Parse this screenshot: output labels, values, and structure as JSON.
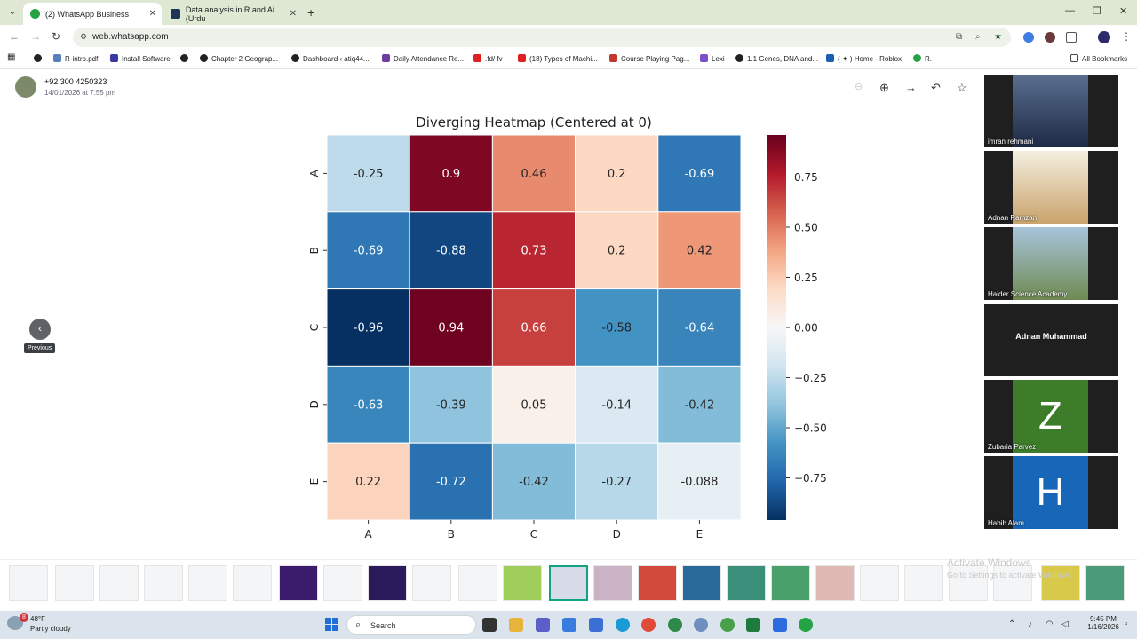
{
  "browser": {
    "tabs": [
      {
        "label": "(2) WhatsApp Business",
        "active": true
      },
      {
        "label": "Data analysis in R and Ai (Urdu",
        "active": false
      }
    ],
    "url": "web.whatsapp.com",
    "bookmarks": [
      "R-intro.pdf",
      "Install Software",
      "Chapter 2 Geograp...",
      "Dashboard ‹ atiq44...",
      "Daily Attendance Re...",
      ".fd/ fv",
      "(18) Types of Machi...",
      "Course Playing Pag...",
      "Lexi",
      "1.1 Genes, DNA and...",
      "( ✦ ) Home - Roblox",
      "R.",
      "All Bookmarks"
    ]
  },
  "viewer": {
    "sender": "+92 300 4250323",
    "timestamp": "14/01/2026 at 7:55 pm",
    "tooltip": "Previous"
  },
  "chart_data": {
    "type": "heatmap",
    "title": "Diverging Heatmap (Centered at 0)",
    "rows": [
      "A",
      "B",
      "C",
      "D",
      "E"
    ],
    "columns": [
      "A",
      "B",
      "C",
      "D",
      "E"
    ],
    "values": [
      [
        -0.25,
        0.9,
        0.46,
        0.2,
        -0.69
      ],
      [
        -0.69,
        -0.88,
        0.73,
        0.2,
        0.42
      ],
      [
        -0.96,
        0.94,
        0.66,
        -0.58,
        -0.64
      ],
      [
        -0.63,
        -0.39,
        0.05,
        -0.14,
        -0.42
      ],
      [
        0.22,
        -0.72,
        -0.42,
        -0.27,
        -0.088
      ]
    ],
    "labels": [
      [
        "-0.25",
        "0.9",
        "0.46",
        "0.2",
        "-0.69"
      ],
      [
        "-0.69",
        "-0.88",
        "0.73",
        "0.2",
        "0.42"
      ],
      [
        "-0.96",
        "0.94",
        "0.66",
        "-0.58",
        "-0.64"
      ],
      [
        "-0.63",
        "-0.39",
        "0.05",
        "-0.14",
        "-0.42"
      ],
      [
        "0.22",
        "-0.72",
        "-0.42",
        "-0.27",
        "-0.088"
      ]
    ],
    "colormap": "RdBu_r",
    "vmin": -0.96,
    "vmax": 0.96,
    "colorbar_ticks": [
      0.75,
      0.5,
      0.25,
      0.0,
      -0.25,
      -0.5,
      -0.75
    ],
    "colorbar_tick_labels": [
      "0.75",
      "0.50",
      "0.25",
      "0.00",
      "−0.25",
      "−0.50",
      "−0.75"
    ]
  },
  "participants": [
    {
      "name": "imran rehmani",
      "kind": "photo",
      "color": "#3b4a6b"
    },
    {
      "name": "Adnan Ramzan",
      "kind": "photo",
      "color": "#e8e2cf"
    },
    {
      "name": "Haider Science Academy",
      "kind": "photo",
      "color": "#8fb0c8"
    },
    {
      "name": "Adnan Muhammad",
      "kind": "name",
      "color": "#1f1f1f"
    },
    {
      "name": "Zubaria Parvez",
      "kind": "letter",
      "letter": "Z",
      "color": "#3d7d2a"
    },
    {
      "name": "Habib Alam",
      "kind": "letter",
      "letter": "H",
      "color": "#1766b8"
    }
  ],
  "watermark": {
    "line1": "Activate Windows",
    "line2": "Go to Settings to activate Windows."
  },
  "taskbar": {
    "weather_badge": "8",
    "temperature": "48°F",
    "condition": "Partly cloudy",
    "search_label": "Search",
    "time": "9:45 PM",
    "date": "1/16/2026"
  }
}
